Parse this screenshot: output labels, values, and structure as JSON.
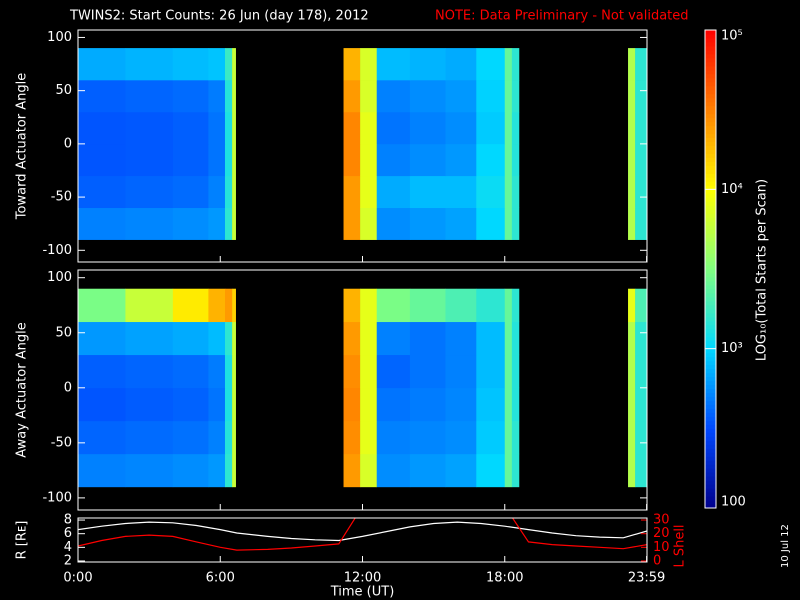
{
  "title": "TWINS2: Start Counts: 26 Jun (day 178), 2012",
  "note": "NOTE: Data Preliminary - Not validated",
  "date_stamp": "10 Jul 12",
  "colorbar": {
    "label": "LOG₁₀(Total Starts per Scan)",
    "scale": "log",
    "lim": [
      100,
      100000
    ],
    "ticks": [
      100,
      {
        "value": 1000,
        "label": "10³"
      },
      {
        "value": 10000,
        "label": "10⁴"
      },
      {
        "value": 100000,
        "label": "10⁵"
      }
    ],
    "colors": [
      "#00008c",
      "#0048ff",
      "#00d8ff",
      "#80ff80",
      "#ffff00",
      "#ff8000",
      "#ff0000"
    ]
  },
  "chart_data": [
    {
      "type": "heatmap",
      "ylabel": "Toward Actuator Angle",
      "xlim": [
        0,
        24
      ],
      "x_bins": [
        0,
        2,
        4,
        5.5,
        6.2,
        6.5,
        6.65,
        11.2,
        11.9,
        12.6,
        14,
        15.5,
        16.8,
        18,
        18.3,
        18.6,
        23.2,
        23.5,
        24
      ],
      "y_bins": [
        -90,
        -60,
        -30,
        0,
        30,
        60,
        90
      ],
      "ylim": [
        -111,
        107
      ],
      "yticks": [
        -100,
        -50,
        0,
        50,
        100
      ],
      "values": [
        [
          500,
          520,
          550,
          600,
          1500,
          6000,
          null,
          25000,
          7000,
          550,
          600,
          650,
          1000,
          2500,
          1500,
          null,
          5000,
          1500
        ],
        [
          380,
          400,
          420,
          500,
          1400,
          6000,
          null,
          25000,
          8000,
          700,
          800,
          800,
          1100,
          2500,
          1500,
          null,
          5000,
          1500
        ],
        [
          350,
          360,
          380,
          450,
          1300,
          6000,
          null,
          30000,
          8000,
          500,
          550,
          600,
          1000,
          2500,
          1400,
          null,
          5000,
          1500
        ],
        [
          350,
          360,
          380,
          450,
          1300,
          6000,
          null,
          30000,
          8000,
          450,
          500,
          550,
          900,
          2500,
          1400,
          null,
          5000,
          1500
        ],
        [
          380,
          400,
          420,
          480,
          1400,
          6000,
          null,
          25000,
          7000,
          500,
          550,
          600,
          950,
          2500,
          1500,
          null,
          5000,
          1500
        ],
        [
          700,
          750,
          800,
          850,
          1700,
          6000,
          null,
          20000,
          7000,
          800,
          750,
          700,
          1000,
          2500,
          1500,
          null,
          5000,
          1500
        ]
      ]
    },
    {
      "type": "heatmap",
      "ylabel": "Away Actuator Angle",
      "xlim": [
        0,
        24
      ],
      "x_bins": [
        0,
        2,
        4,
        5.5,
        6.2,
        6.5,
        6.65,
        11.2,
        11.9,
        12.6,
        14,
        15.5,
        16.8,
        18,
        18.3,
        18.6,
        23.2,
        23.5,
        24
      ],
      "y_bins": [
        -90,
        -60,
        -30,
        0,
        30,
        60,
        90
      ],
      "ylim": [
        -111,
        107
      ],
      "yticks": [
        -100,
        -50,
        0,
        50,
        100
      ],
      "values": [
        [
          500,
          520,
          550,
          600,
          1500,
          6000,
          null,
          25000,
          7000,
          550,
          600,
          650,
          1000,
          2500,
          1500,
          null,
          5000,
          1500
        ],
        [
          400,
          420,
          440,
          500,
          1400,
          6000,
          null,
          28000,
          8000,
          500,
          520,
          550,
          900,
          2500,
          1500,
          null,
          5000,
          1500
        ],
        [
          350,
          370,
          390,
          450,
          1300,
          6000,
          null,
          30000,
          8000,
          450,
          480,
          520,
          850,
          2500,
          1400,
          null,
          5000,
          1500
        ],
        [
          380,
          400,
          420,
          480,
          1300,
          6000,
          null,
          28000,
          8000,
          400,
          450,
          500,
          800,
          2500,
          1400,
          null,
          5000,
          1500
        ],
        [
          600,
          650,
          700,
          800,
          1500,
          6000,
          null,
          25000,
          8000,
          500,
          450,
          500,
          800,
          2500,
          1400,
          null,
          5000,
          1500
        ],
        [
          3000,
          6000,
          12000,
          20000,
          25000,
          15000,
          null,
          20000,
          8000,
          3000,
          2500,
          2000,
          1500,
          2500,
          1500,
          null,
          8000,
          2000
        ]
      ]
    },
    {
      "type": "line",
      "xlabel": "Time (UT)",
      "xlim": [
        0,
        24
      ],
      "xticks": [
        {
          "value": 0,
          "label": "0:00"
        },
        {
          "value": 6,
          "label": "6:00"
        },
        {
          "value": 12,
          "label": "12:00"
        },
        {
          "value": 18,
          "label": "18:00"
        },
        {
          "value": 23.983,
          "label": "23:59"
        }
      ],
      "ylabel": "R [Rᴇ]",
      "ylim": [
        1.85,
        8.3
      ],
      "yticks": [
        2,
        4,
        6,
        8
      ],
      "y2label": "L Shell",
      "y2lim": [
        -0.75,
        31.5
      ],
      "y2ticks": [
        0,
        10,
        20,
        30
      ],
      "y2color": "#ff0000",
      "x": [
        0,
        1,
        2,
        3,
        4,
        5,
        6,
        6.7,
        8,
        9,
        10,
        11,
        12,
        13,
        14,
        15,
        16,
        17,
        18,
        19,
        20,
        21,
        22,
        23,
        24
      ],
      "series": [
        {
          "color": "#ffffff",
          "values": [
            6.6,
            7.1,
            7.5,
            7.7,
            7.6,
            7.2,
            6.6,
            6.1,
            5.6,
            5.3,
            5.1,
            5.0,
            5.6,
            6.3,
            7.0,
            7.5,
            7.7,
            7.5,
            7.1,
            6.6,
            6.1,
            5.7,
            5.5,
            5.4,
            6.4
          ]
        },
        {
          "color": "#ff0000",
          "axis": "y2",
          "values": [
            11,
            15,
            18,
            19,
            18,
            14,
            10,
            8,
            8.5,
            9.5,
            11,
            12.5,
            40,
            null,
            null,
            null,
            null,
            null,
            40,
            14,
            12,
            11,
            10,
            9,
            12
          ]
        }
      ]
    }
  ]
}
